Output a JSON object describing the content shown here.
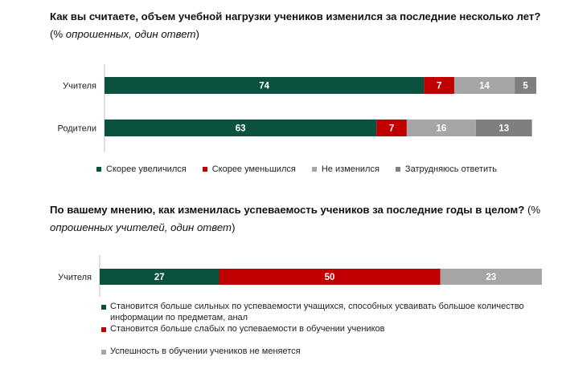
{
  "q1": {
    "title": "Как вы считаете, объем учебной нагрузки учеников изменился за последние несколько лет?",
    "note_open": " (% ",
    "note_italic": "опрошенных, один ответ",
    "note_close": ")"
  },
  "q2": {
    "title": "По вашему мнению, как изменилась успеваемость учеников за последние годы в целом?",
    "note_open": " (% ",
    "note_italic": "опрошенных учителей, один ответ",
    "note_close": ")"
  },
  "colors": {
    "dark_green": "#0b5140",
    "red": "#c00000",
    "light_gray": "#a6a6a6",
    "dark_gray": "#7f7f7f",
    "axis": "#bfbfbf"
  },
  "chart_data": [
    {
      "type": "bar",
      "orientation": "horizontal",
      "stacked": true,
      "categories": [
        "Учителя",
        "Родители"
      ],
      "series": [
        {
          "name": "Скорее увеличился",
          "values": [
            74,
            63
          ],
          "color": "#0b5140"
        },
        {
          "name": "Скорее уменьшился",
          "values": [
            7,
            7
          ],
          "color": "#c00000"
        },
        {
          "name": "Не изменился",
          "values": [
            14,
            16
          ],
          "color": "#a6a6a6"
        },
        {
          "name": "Затрудняюсь ответить",
          "values": [
            5,
            13
          ],
          "color": "#7f7f7f"
        }
      ],
      "xlim": [
        0,
        100
      ],
      "legend_position": "bottom"
    },
    {
      "type": "bar",
      "orientation": "horizontal",
      "stacked": true,
      "categories": [
        "Учителя"
      ],
      "series": [
        {
          "name": "Становится больше сильных по успеваемости учащихся, способных усваивать большое количество информации по предметам, анал",
          "values": [
            27
          ],
          "color": "#0b5140"
        },
        {
          "name": "Становится больше слабых по успеваемости в обучении учеников",
          "values": [
            50
          ],
          "color": "#c00000"
        },
        {
          "name": "Успешность в обучении учеников не меняется",
          "values": [
            23
          ],
          "color": "#a6a6a6"
        }
      ],
      "xlim": [
        0,
        100
      ],
      "legend_position": "bottom"
    }
  ]
}
